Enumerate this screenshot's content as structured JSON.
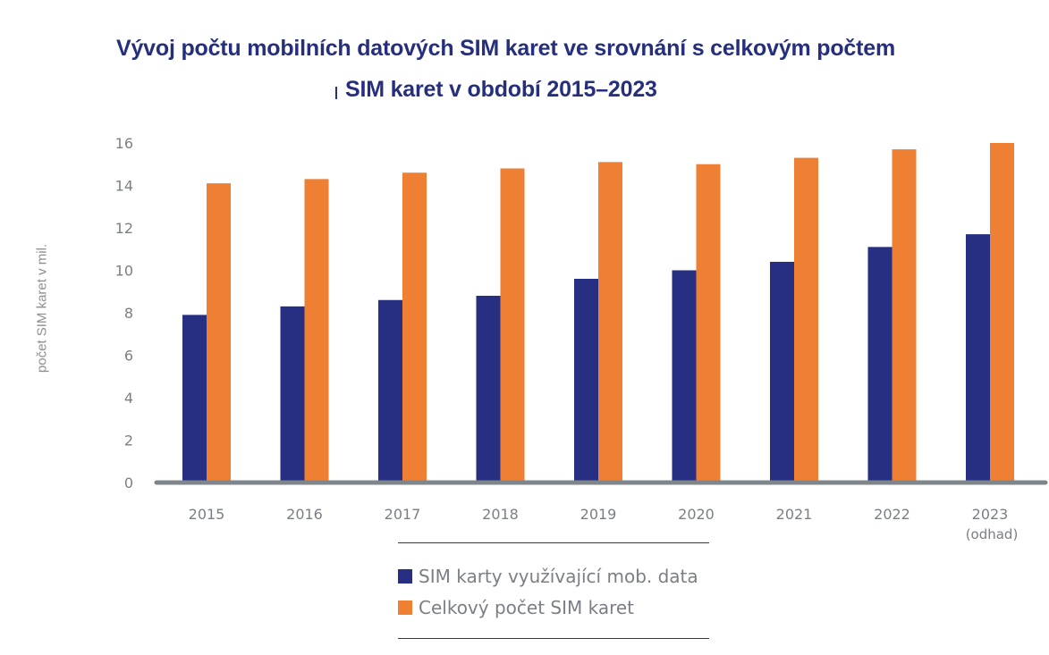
{
  "chart_data": {
    "type": "bar",
    "title_line1": "Vývoj počtu mobilních datových SIM karet ve srovnání s celkovým počtem",
    "title_line2": "SIM karet v období 2015–2023",
    "xlabel": "",
    "ylabel": "počet SIM karet v mil.",
    "ylim": [
      0,
      16
    ],
    "yticks": [
      "0",
      "2",
      "4",
      "6",
      "8",
      "10",
      "12",
      "14",
      "16"
    ],
    "categories": [
      "2015",
      "2016",
      "2017",
      "2018",
      "2019",
      "2020",
      "2021",
      "2022",
      "2023"
    ],
    "category_sublabels": [
      "",
      "",
      "",
      "",
      "",
      "",
      "",
      "",
      "(odhad)"
    ],
    "series": [
      {
        "name": "SIM karty využívající mob. data",
        "color": "#272f82",
        "values": [
          7.9,
          8.3,
          8.6,
          8.8,
          9.6,
          10.0,
          10.4,
          11.1,
          11.7
        ]
      },
      {
        "name": "Celkový počet SIM karet",
        "color": "#ee7f33",
        "values": [
          14.1,
          14.3,
          14.6,
          14.8,
          15.1,
          15.0,
          15.3,
          15.7,
          16.0
        ]
      }
    ],
    "grid": false,
    "legend_position": "bottom-center"
  }
}
